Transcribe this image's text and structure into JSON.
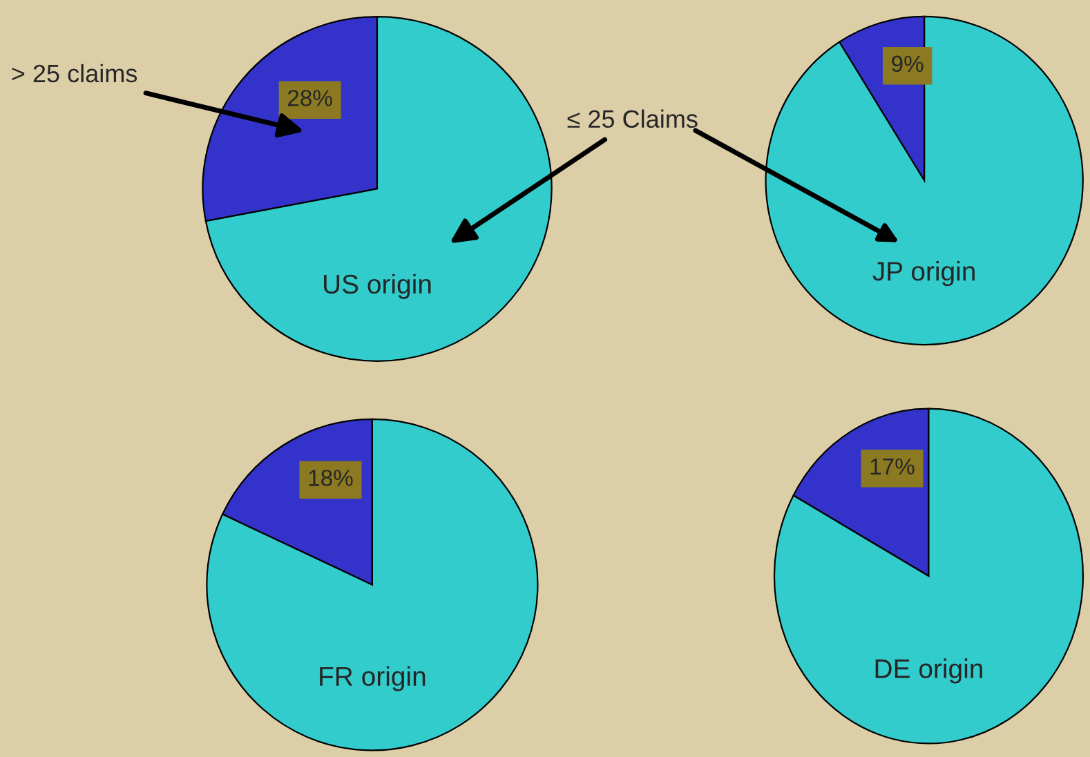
{
  "chart_data": [
    {
      "type": "pie",
      "title": "US origin",
      "categories": [
        "> 25 claims",
        "≤ 25 Claims"
      ],
      "values": [
        28,
        72
      ],
      "colors": [
        "#3333cc",
        "#33cccc"
      ],
      "value_labels": [
        "28%",
        null
      ]
    },
    {
      "type": "pie",
      "title": "JP origin",
      "categories": [
        null,
        null
      ],
      "values": [
        9,
        91
      ],
      "colors": [
        "#3333cc",
        "#33cccc"
      ],
      "value_labels": [
        "9%",
        null
      ]
    },
    {
      "type": "pie",
      "title": "FR origin",
      "categories": [
        null,
        null
      ],
      "values": [
        18,
        82
      ],
      "colors": [
        "#3333cc",
        "#33cccc"
      ],
      "value_labels": [
        "18%",
        null
      ]
    },
    {
      "type": "pie",
      "title": "DE origin",
      "categories": [
        null,
        null
      ],
      "values": [
        17,
        83
      ],
      "colors": [
        "#3333cc",
        "#33cccc"
      ],
      "value_labels": [
        "17%",
        null
      ]
    }
  ]
}
